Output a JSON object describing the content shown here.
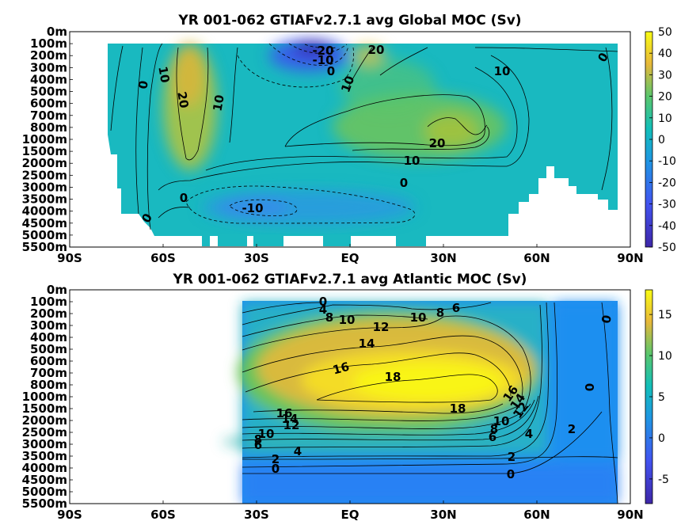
{
  "chart_data": [
    {
      "type": "heatmap",
      "title": "YR 001-062 GTIAFv2.7.1 avg  Global MOC (Sv)",
      "x_ticks": [
        "90S",
        "60S",
        "30S",
        "EQ",
        "30N",
        "60N",
        "90N"
      ],
      "y_ticks": [
        "0m",
        "100m",
        "200m",
        "300m",
        "400m",
        "500m",
        "600m",
        "700m",
        "800m",
        "1000m",
        "1500m",
        "2000m",
        "2500m",
        "3000m",
        "3500m",
        "4000m",
        "4500m",
        "5000m",
        "5500m"
      ],
      "colorbar_ticks": [
        "50",
        "40",
        "30",
        "20",
        "10",
        "0",
        "-10",
        "-20",
        "-30",
        "-40",
        "-50"
      ],
      "colorbar_range": [
        -50,
        50
      ],
      "colormap": "parula",
      "xlim": [
        -90,
        90
      ],
      "contour_labels": [
        "-20",
        "-10",
        "0",
        "20",
        "10",
        "10",
        "0",
        "20",
        "10",
        "10",
        "20",
        "10",
        "0",
        "0",
        "-10",
        "0",
        "0"
      ]
    },
    {
      "type": "heatmap",
      "title": "YR 001-062 GTIAFv2.7.1 avg  Atlantic MOC (Sv)",
      "x_ticks": [
        "90S",
        "60S",
        "30S",
        "EQ",
        "30N",
        "60N",
        "90N"
      ],
      "y_ticks": [
        "0m",
        "100m",
        "200m",
        "300m",
        "400m",
        "500m",
        "600m",
        "700m",
        "800m",
        "1000m",
        "1500m",
        "2000m",
        "2500m",
        "3000m",
        "3500m",
        "4000m",
        "4500m",
        "5000m",
        "5500m"
      ],
      "colorbar_ticks": [
        "15",
        "10",
        "5",
        "0",
        "-5"
      ],
      "colorbar_range": [
        -8,
        18
      ],
      "colormap": "parula",
      "xlim": [
        -90,
        90
      ],
      "contour_labels": [
        "0",
        "4",
        "8",
        "10",
        "12",
        "10",
        "8",
        "6",
        "14",
        "16",
        "18",
        "16",
        "14",
        "12",
        "10",
        "8",
        "6",
        "4",
        "18",
        "16",
        "14",
        "12",
        "10",
        "8",
        "6",
        "4",
        "2",
        "2",
        "0",
        "2",
        "0",
        "0"
      ]
    }
  ]
}
